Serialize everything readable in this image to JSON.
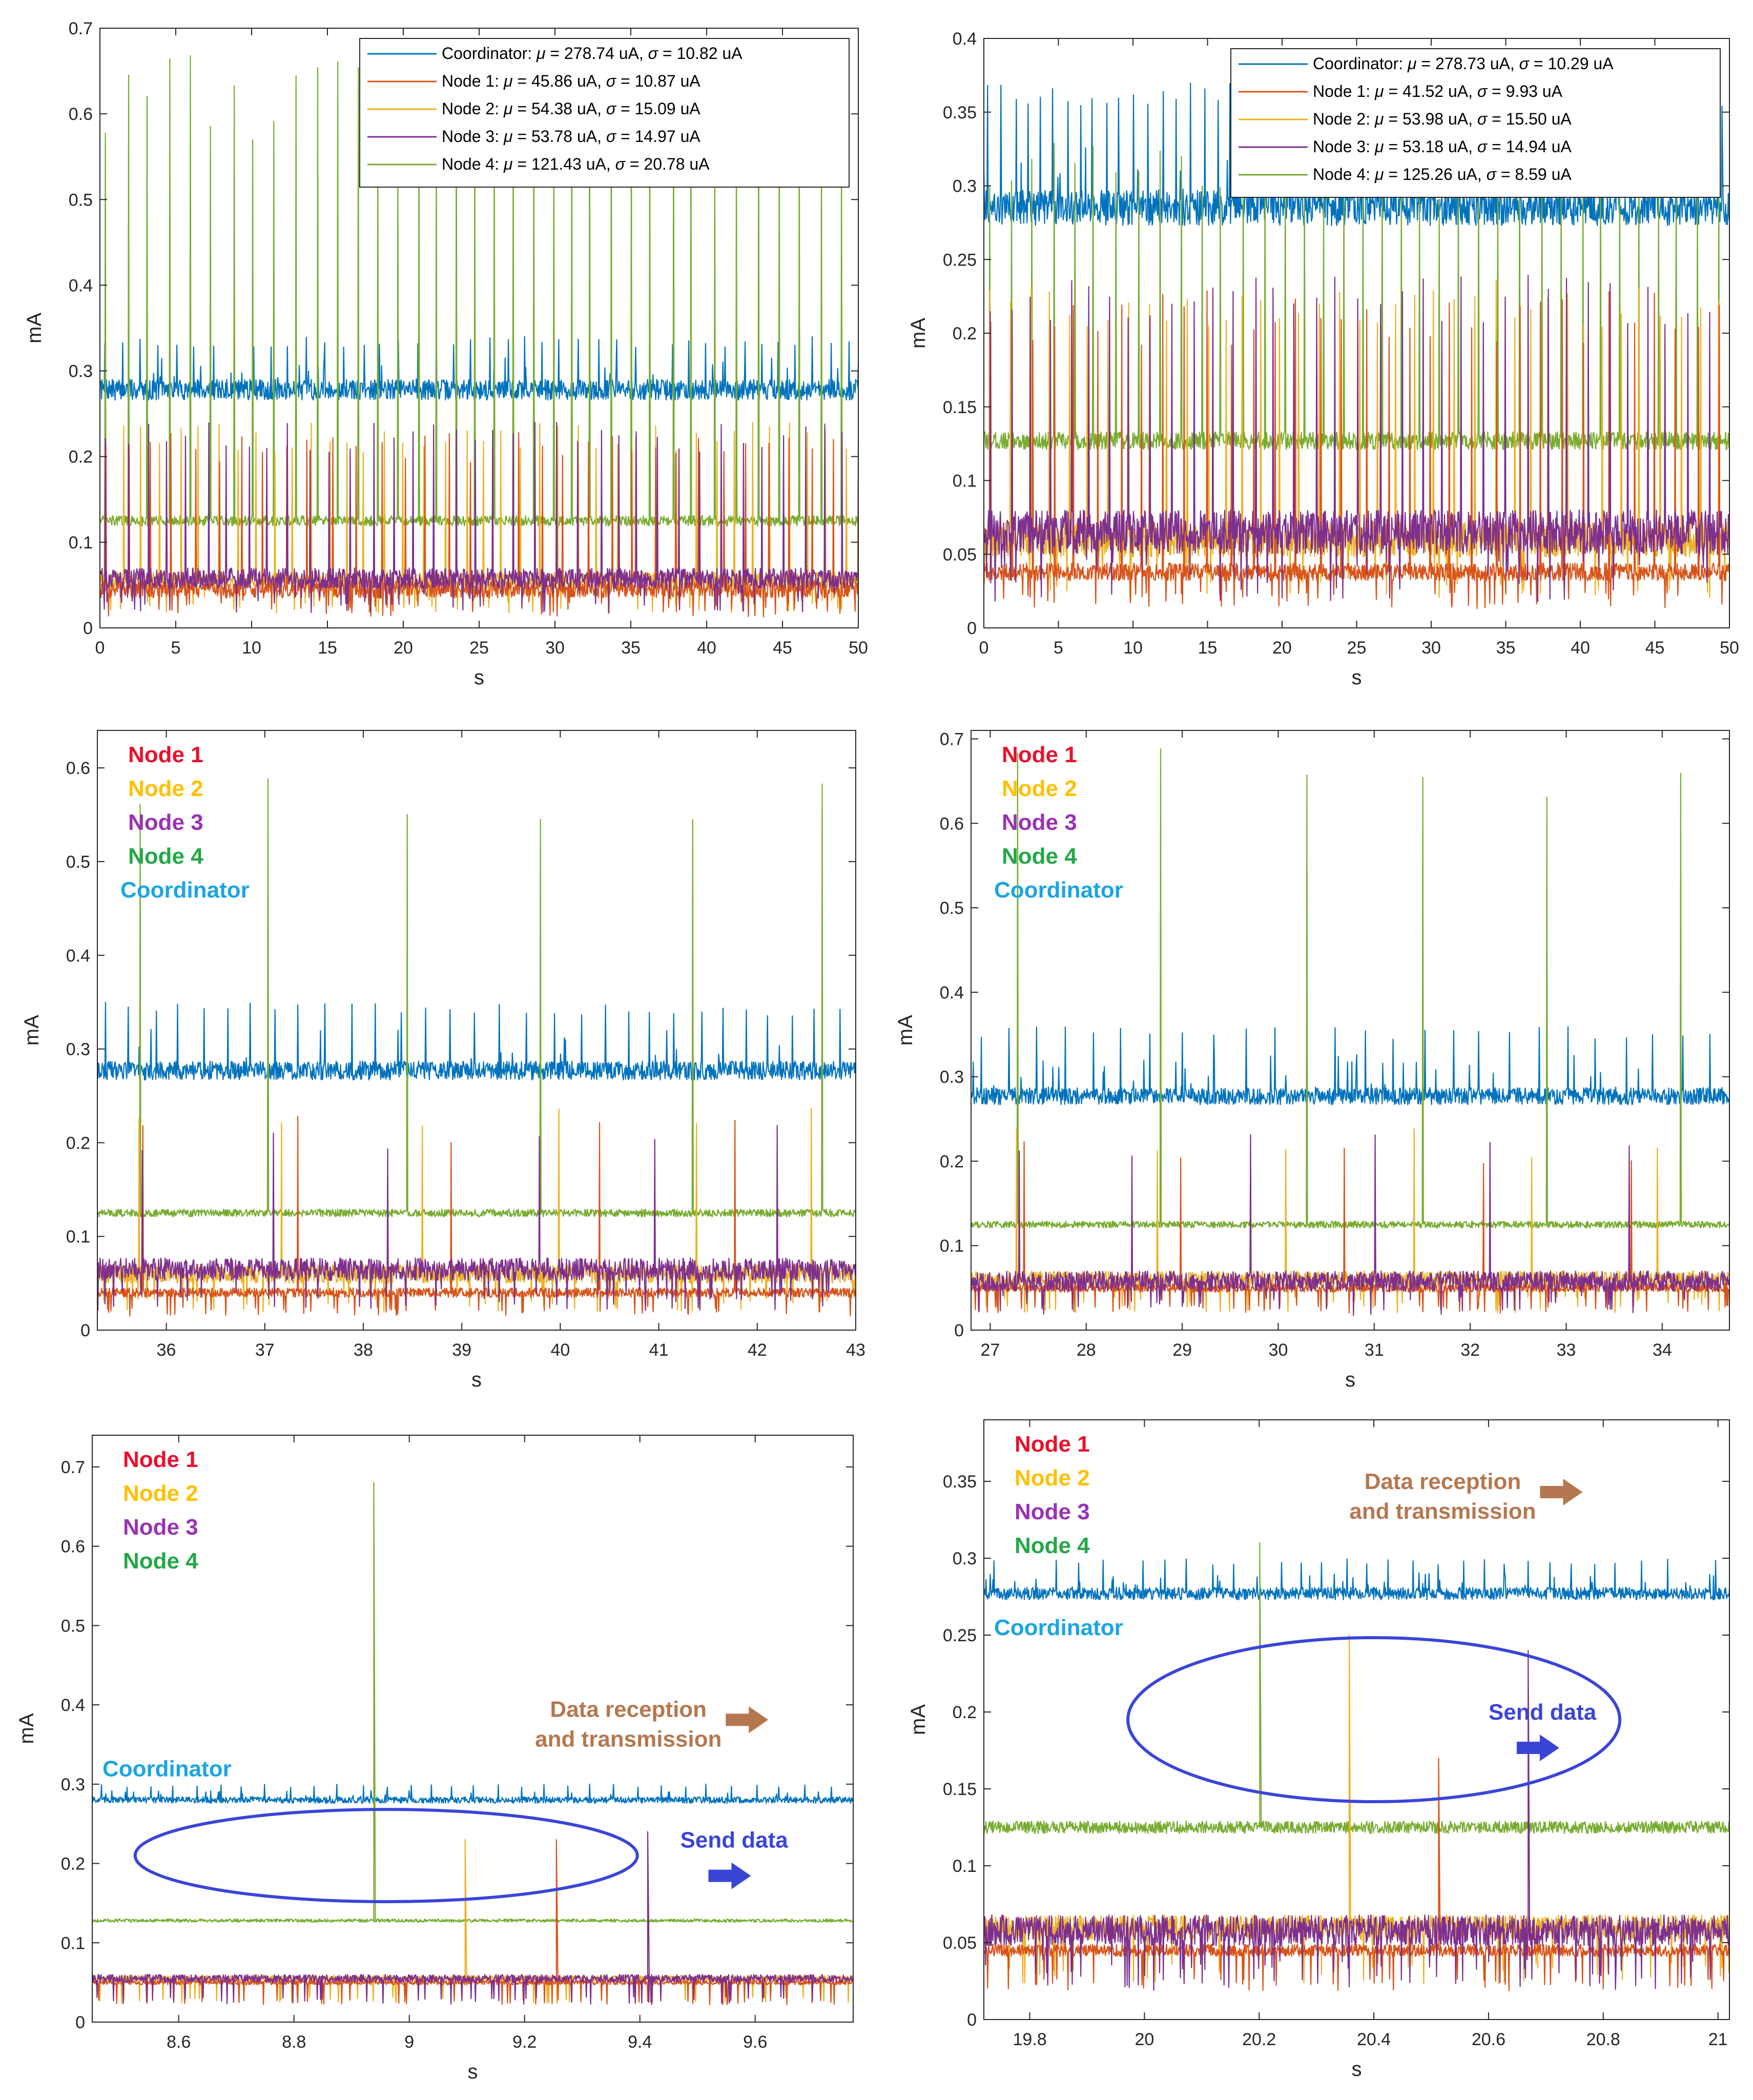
{
  "colors": {
    "coordinator": "#0072BD",
    "node1": "#D95319",
    "node2": "#EDB120",
    "node3": "#7E2F8E",
    "node4": "#77AC30",
    "label_node1": "#E8112D",
    "label_node2": "#FFC000",
    "label_node3": "#9932B5",
    "label_node4": "#22A846",
    "label_coordinator": "#1AA5E2",
    "annotation_brown": "#B5774F",
    "annotation_blue": "#3A45D8"
  },
  "chart_data": [
    {
      "type": "line",
      "xlabel": "s",
      "ylabel": "mA",
      "xlim": [
        0,
        50
      ],
      "ylim": [
        0,
        0.7
      ],
      "xticks": [
        "0",
        "5",
        "10",
        "15",
        "20",
        "25",
        "30",
        "35",
        "40",
        "45",
        "50"
      ],
      "yticks": [
        "0",
        "0.1",
        "0.2",
        "0.3",
        "0.4",
        "0.5",
        "0.6",
        "0.7"
      ],
      "legend_placement": "top-right",
      "legend": [
        {
          "key": "coordinator",
          "prefix": "Coordinator: ",
          "mu": "278.74 uA",
          "sigma": "10.82 uA"
        },
        {
          "key": "node1",
          "prefix": "Node 1: ",
          "mu": "45.86 uA",
          "sigma": "10.87 uA"
        },
        {
          "key": "node2",
          "prefix": "Node 2: ",
          "mu": "54.38 uA",
          "sigma": "15.09 uA"
        },
        {
          "key": "node3",
          "prefix": "Node 3: ",
          "mu": "53.78 uA",
          "sigma": "14.97 uA"
        },
        {
          "key": "node4",
          "prefix": "Node 4: ",
          "mu": "121.43 uA",
          "sigma": "20.78 uA"
        }
      ],
      "series": [
        {
          "key": "coordinator",
          "baseline": 0.278,
          "noise": 0.012,
          "spike_every": 1.2,
          "spike_height": 0.34
        },
        {
          "key": "node4",
          "baseline": 0.125,
          "noise": 0.006,
          "spike_every": 1.36,
          "spike_height": 0.67
        },
        {
          "key": "node2",
          "baseline": 0.055,
          "noise": 0.01,
          "spike_every": 1.25,
          "spike_height": 0.24
        },
        {
          "key": "node1",
          "baseline": 0.045,
          "noise": 0.01,
          "spike_every": 1.5,
          "spike_height": 0.23
        },
        {
          "key": "node3",
          "baseline": 0.058,
          "noise": 0.012,
          "spike_every": 1.35,
          "spike_height": 0.24
        }
      ]
    },
    {
      "type": "line",
      "xlabel": "s",
      "ylabel": "mA",
      "xlim": [
        0,
        50
      ],
      "ylim": [
        0,
        0.4
      ],
      "xticks": [
        "0",
        "5",
        "10",
        "15",
        "20",
        "25",
        "30",
        "35",
        "40",
        "45",
        "50"
      ],
      "yticks": [
        "0",
        "0.05",
        "0.1",
        "0.15",
        "0.2",
        "0.25",
        "0.3",
        "0.35",
        "0.4"
      ],
      "legend_placement": "top-right",
      "legend": [
        {
          "key": "coordinator",
          "prefix": "Coordinator: ",
          "mu": "278.73 uA",
          "sigma": "10.29 uA"
        },
        {
          "key": "node1",
          "prefix": "Node 1: ",
          "mu": "41.52 uA",
          "sigma": "9.93 uA"
        },
        {
          "key": "node2",
          "prefix": "Node 2: ",
          "mu": "53.98 uA",
          "sigma": "15.50 uA"
        },
        {
          "key": "node3",
          "prefix": "Node 3: ",
          "mu": "53.18 uA",
          "sigma": "14.94 uA"
        },
        {
          "key": "node4",
          "prefix": "Node 4: ",
          "mu": "125.26 uA",
          "sigma": "8.59 uA"
        }
      ],
      "series": [
        {
          "key": "coordinator",
          "baseline": 0.285,
          "noise": 0.012,
          "spike_every": 0.9,
          "spike_height": 0.37
        },
        {
          "key": "node4",
          "baseline": 0.127,
          "noise": 0.006,
          "spike_every": 1.36,
          "spike_height": 0.33
        },
        {
          "key": "node2",
          "baseline": 0.06,
          "noise": 0.012,
          "spike_every": 1.25,
          "spike_height": 0.24
        },
        {
          "key": "node1",
          "baseline": 0.038,
          "noise": 0.006,
          "spike_every": 1.5,
          "spike_height": 0.23
        },
        {
          "key": "node3",
          "baseline": 0.065,
          "noise": 0.015,
          "spike_every": 1.35,
          "spike_height": 0.24
        }
      ]
    },
    {
      "type": "line",
      "xlabel": "s",
      "ylabel": "mA",
      "xlim": [
        35.3,
        43.0
      ],
      "ylim": [
        0,
        0.64
      ],
      "xticks": [
        "36",
        "37",
        "38",
        "39",
        "40",
        "41",
        "42",
        "43"
      ],
      "yticks": [
        "0",
        "0.1",
        "0.2",
        "0.3",
        "0.4",
        "0.5",
        "0.6"
      ],
      "labels": [
        "Node 1",
        "Node 2",
        "Node 3",
        "Node 4",
        "Coordinator"
      ],
      "series": [
        {
          "key": "coordinator",
          "baseline": 0.277,
          "noise": 0.01,
          "spike_every": 0.25,
          "spike_height": 0.35
        },
        {
          "key": "node4",
          "baseline": 0.125,
          "noise": 0.004,
          "spike_every": 1.36,
          "spike_height": 0.62
        },
        {
          "key": "node2",
          "baseline": 0.06,
          "noise": 0.01,
          "spike_every": 1.3,
          "spike_height": 0.24
        },
        {
          "key": "node1",
          "baseline": 0.04,
          "noise": 0.005,
          "spike_every": 1.4,
          "spike_height": 0.23
        },
        {
          "key": "node3",
          "baseline": 0.065,
          "noise": 0.012,
          "spike_every": 1.35,
          "spike_height": 0.22
        }
      ]
    },
    {
      "type": "line",
      "xlabel": "s",
      "ylabel": "mA",
      "xlim": [
        26.8,
        34.7
      ],
      "ylim": [
        0,
        0.71
      ],
      "xticks": [
        "27",
        "28",
        "29",
        "30",
        "31",
        "32",
        "33",
        "34"
      ],
      "yticks": [
        "0",
        "0.1",
        "0.2",
        "0.3",
        "0.4",
        "0.5",
        "0.6",
        "0.7"
      ],
      "labels": [
        "Node 1",
        "Node 2",
        "Node 3",
        "Node 4",
        "Coordinator"
      ],
      "series": [
        {
          "key": "coordinator",
          "baseline": 0.277,
          "noise": 0.01,
          "spike_every": 0.3,
          "spike_height": 0.36
        },
        {
          "key": "node4",
          "baseline": 0.125,
          "noise": 0.004,
          "spike_every": 1.36,
          "spike_height": 0.7
        },
        {
          "key": "node2",
          "baseline": 0.06,
          "noise": 0.01,
          "spike_every": 1.3,
          "spike_height": 0.24
        },
        {
          "key": "node1",
          "baseline": 0.05,
          "noise": 0.005,
          "spike_every": 1.5,
          "spike_height": 0.23
        },
        {
          "key": "node3",
          "baseline": 0.058,
          "noise": 0.012,
          "spike_every": 1.35,
          "spike_height": 0.24
        }
      ]
    },
    {
      "type": "line",
      "xlabel": "s",
      "ylabel": "mA",
      "xlim": [
        8.45,
        9.77
      ],
      "ylim": [
        0,
        0.74
      ],
      "xticks": [
        "8.6",
        "8.8",
        "9",
        "9.2",
        "9.4",
        "9.6"
      ],
      "yticks": [
        "0",
        "0.1",
        "0.2",
        "0.3",
        "0.4",
        "0.5",
        "0.6",
        "0.7"
      ],
      "labels": [
        "Node 1",
        "Node 2",
        "Node 3",
        "Node 4"
      ],
      "coordinator_label": "Coordinator",
      "annotations": [
        "Data reception",
        "and transmission",
        "Send data"
      ],
      "series": [
        {
          "key": "coordinator",
          "baseline": 0.28,
          "noise": 0.004,
          "spike_every": 0.04,
          "spike_height": 0.3
        },
        {
          "key": "node4",
          "baseline": 0.128,
          "noise": 0.002,
          "spike_every": 0.0,
          "spike_height": 0.68
        },
        {
          "key": "node2",
          "baseline": 0.055,
          "noise": 0.004,
          "spike_every": 0.0,
          "spike_height": 0.23
        },
        {
          "key": "node1",
          "baseline": 0.05,
          "noise": 0.003,
          "spike_every": 0.0,
          "spike_height": 0.23
        },
        {
          "key": "node3",
          "baseline": 0.055,
          "noise": 0.005,
          "spike_every": 0.0,
          "spike_height": 0.24
        }
      ]
    },
    {
      "type": "line",
      "xlabel": "s",
      "ylabel": "mA",
      "xlim": [
        19.72,
        21.02
      ],
      "ylim": [
        0,
        0.39
      ],
      "xticks": [
        "19.8",
        "20",
        "20.2",
        "20.4",
        "20.6",
        "20.8",
        "21"
      ],
      "yticks": [
        "0",
        "0.05",
        "0.1",
        "0.15",
        "0.2",
        "0.25",
        "0.3",
        "0.35"
      ],
      "labels": [
        "Node 1",
        "Node 2",
        "Node 3",
        "Node 4"
      ],
      "coordinator_label": "Coordinator",
      "annotations": [
        "Data reception",
        "and transmission",
        "Send data"
      ],
      "series": [
        {
          "key": "coordinator",
          "baseline": 0.277,
          "noise": 0.004,
          "spike_every": 0.04,
          "spike_height": 0.3
        },
        {
          "key": "node4",
          "baseline": 0.125,
          "noise": 0.004,
          "spike_every": 0.0,
          "spike_height": 0.31
        },
        {
          "key": "node2",
          "baseline": 0.06,
          "noise": 0.008,
          "spike_every": 0.0,
          "spike_height": 0.25
        },
        {
          "key": "node1",
          "baseline": 0.045,
          "noise": 0.004,
          "spike_every": 0.0,
          "spike_height": 0.17
        },
        {
          "key": "node3",
          "baseline": 0.058,
          "noise": 0.01,
          "spike_every": 0.0,
          "spike_height": 0.24
        }
      ]
    }
  ]
}
